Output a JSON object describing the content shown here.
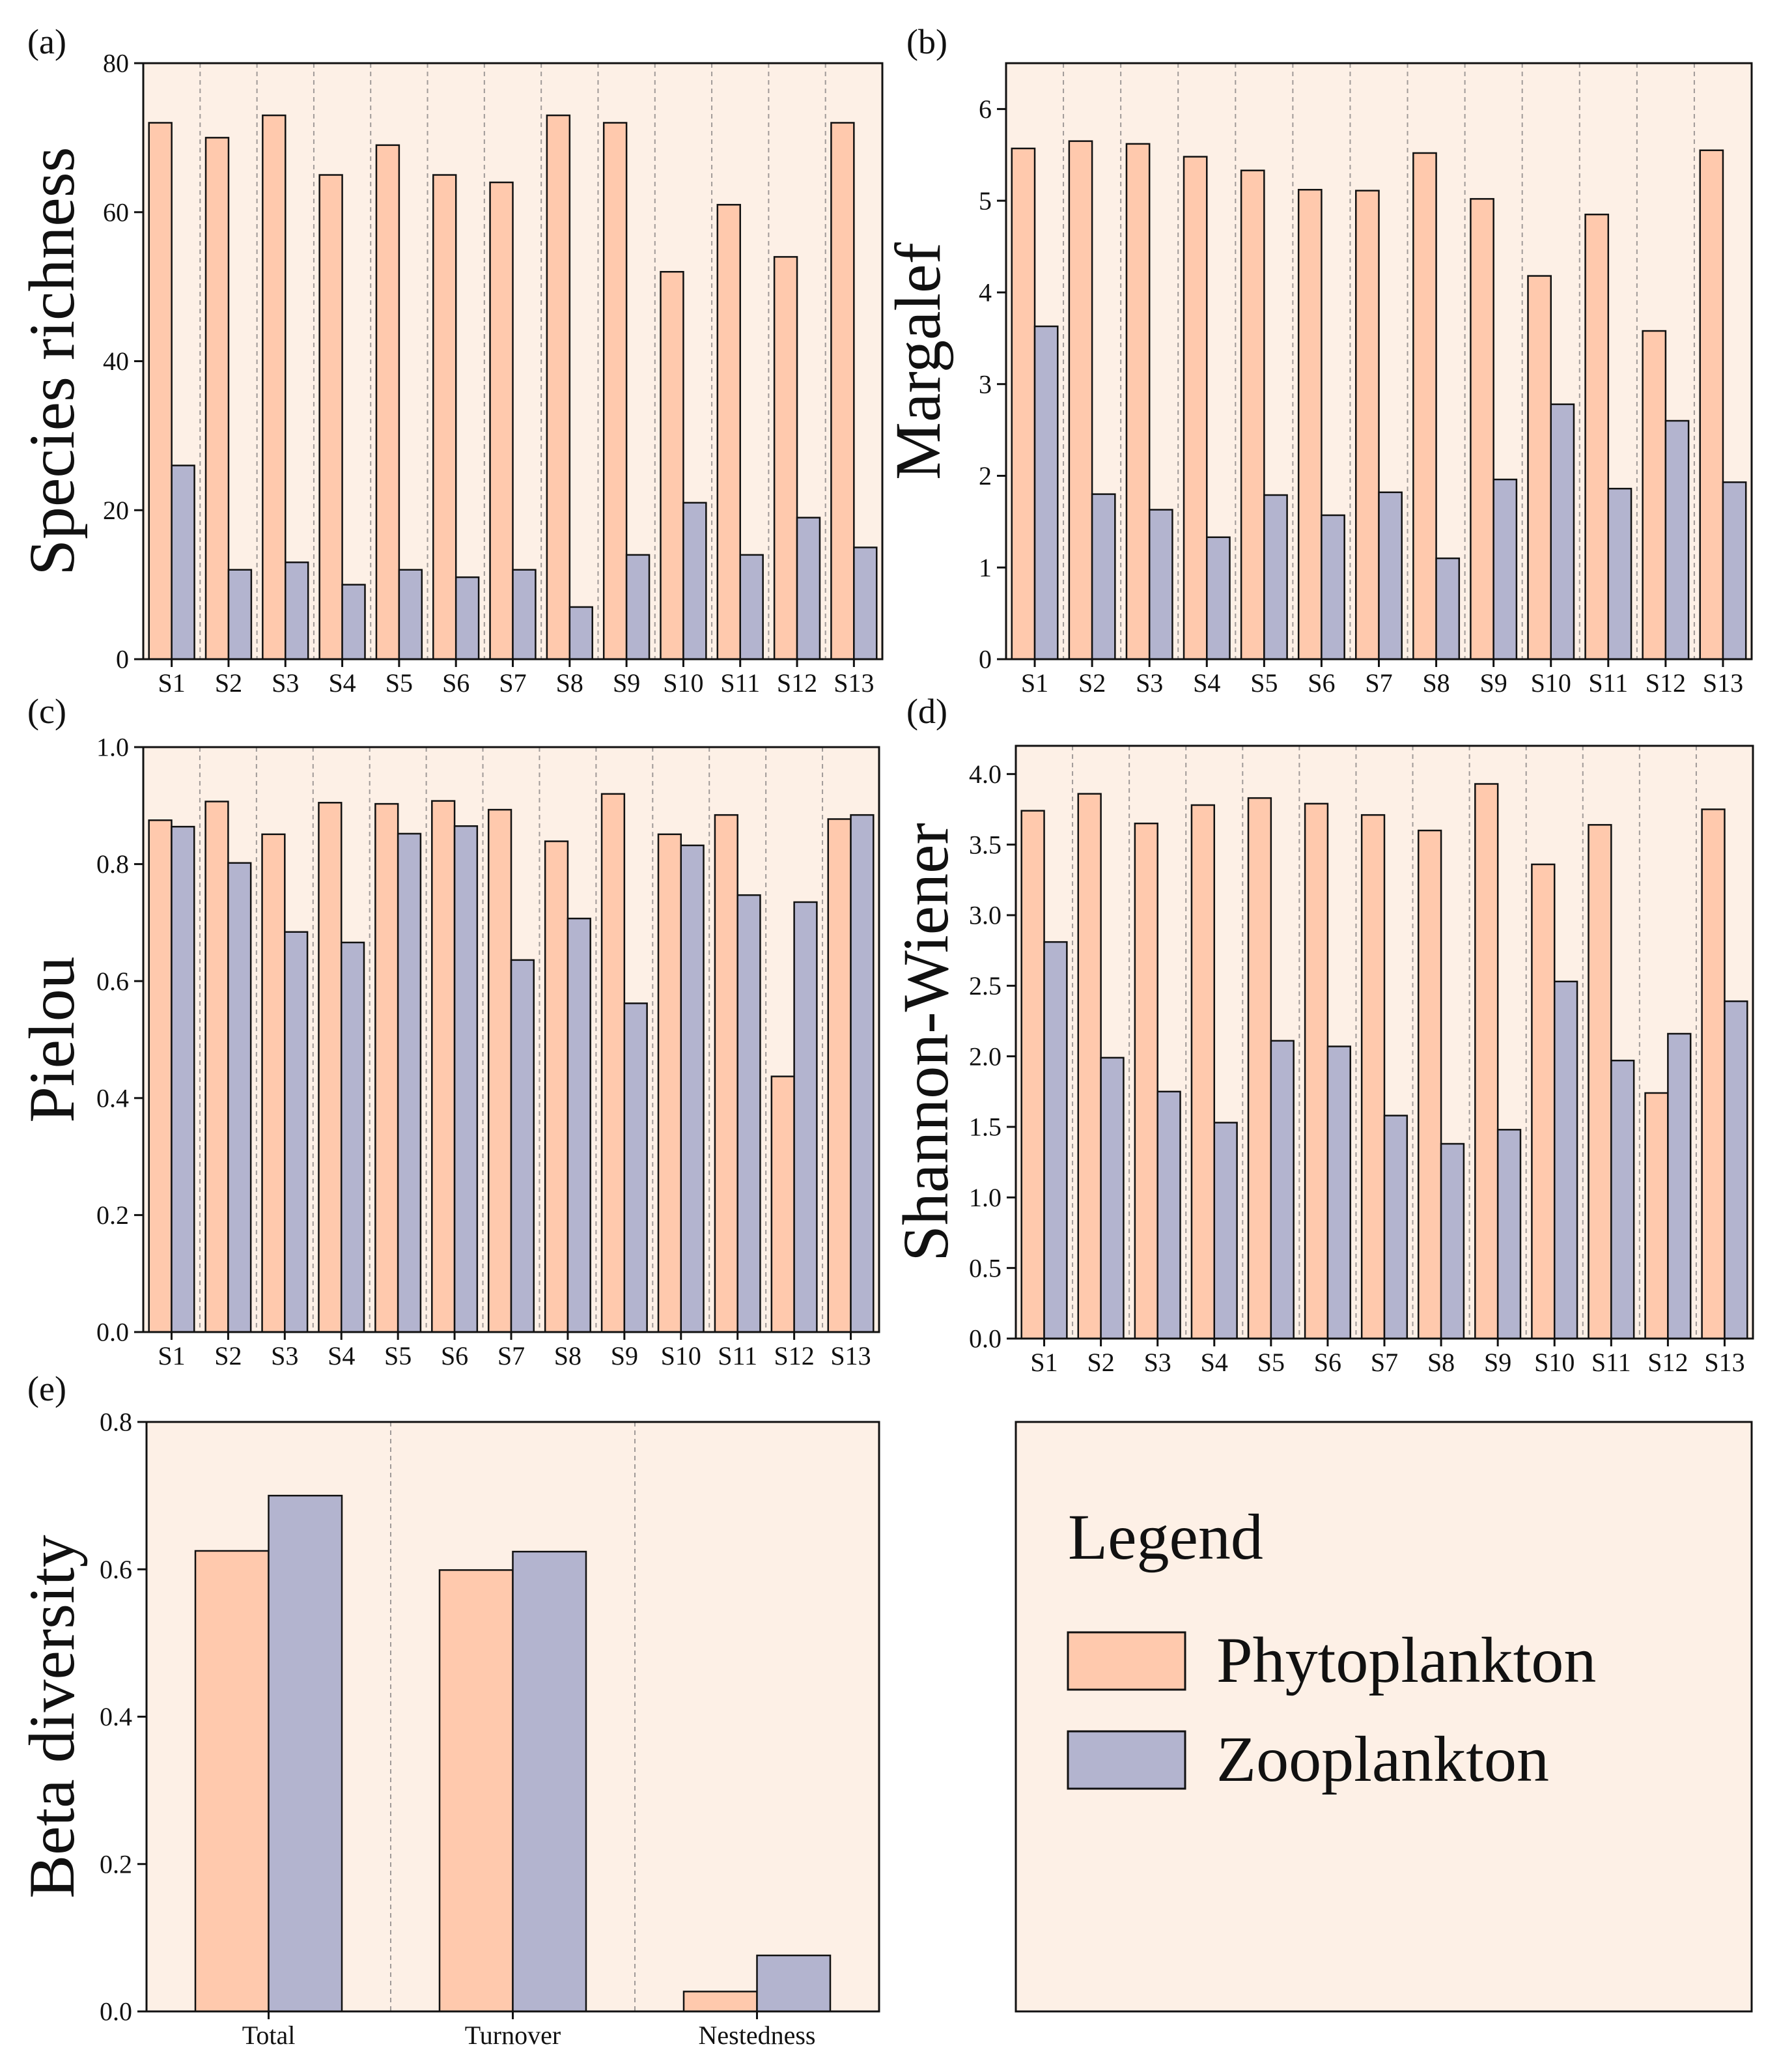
{
  "colors": {
    "background": "#FDF0E6",
    "phytoplankton": "#FFC9AD",
    "zooplankton": "#B3B4CF",
    "bar_stroke": "#111111",
    "axis": "#111111",
    "divider": "#A09A98"
  },
  "legend": {
    "title": "Legend",
    "items": [
      {
        "label": "Phytoplankton",
        "color": "#FFC9AD"
      },
      {
        "label": "Zooplankton",
        "color": "#B3B4CF"
      }
    ]
  },
  "chart_data": [
    {
      "type": "bar",
      "panel": "(a)",
      "ylabel": "Species richness",
      "categories": [
        "S1",
        "S2",
        "S3",
        "S4",
        "S5",
        "S6",
        "S7",
        "S8",
        "S9",
        "S10",
        "S11",
        "S12",
        "S13"
      ],
      "ylim": [
        0,
        80
      ],
      "yticks": [
        "0",
        "20",
        "40",
        "60",
        "80"
      ],
      "series": [
        {
          "name": "Phytoplankton",
          "values": [
            72,
            70,
            73,
            65,
            69,
            65,
            64,
            73,
            72,
            52,
            61,
            54,
            72
          ]
        },
        {
          "name": "Zooplankton",
          "values": [
            26,
            12,
            13,
            10,
            12,
            11,
            12,
            7,
            14,
            21,
            14,
            19,
            15
          ]
        }
      ]
    },
    {
      "type": "bar",
      "panel": "(b)",
      "ylabel": "Margalef",
      "categories": [
        "S1",
        "S2",
        "S3",
        "S4",
        "S5",
        "S6",
        "S7",
        "S8",
        "S9",
        "S10",
        "S11",
        "S12",
        "S13"
      ],
      "ylim": [
        0,
        6.5
      ],
      "yticks": [
        "0",
        "1",
        "2",
        "3",
        "4",
        "5",
        "6"
      ],
      "series": [
        {
          "name": "Phytoplankton",
          "values": [
            5.57,
            5.65,
            5.62,
            5.48,
            5.33,
            5.12,
            5.11,
            5.52,
            5.02,
            4.18,
            4.85,
            3.58,
            5.55
          ]
        },
        {
          "name": "Zooplankton",
          "values": [
            3.63,
            1.8,
            1.63,
            1.33,
            1.79,
            1.57,
            1.82,
            1.1,
            1.96,
            2.78,
            1.86,
            2.6,
            1.93
          ]
        }
      ]
    },
    {
      "type": "bar",
      "panel": "(c)",
      "ylabel": "Pielou",
      "categories": [
        "S1",
        "S2",
        "S3",
        "S4",
        "S5",
        "S6",
        "S7",
        "S8",
        "S9",
        "S10",
        "S11",
        "S12",
        "S13"
      ],
      "ylim": [
        0,
        1.0
      ],
      "yticks": [
        "0.0",
        "0.2",
        "0.4",
        "0.6",
        "0.8",
        "1.0"
      ],
      "series": [
        {
          "name": "Phytoplankton",
          "values": [
            0.875,
            0.907,
            0.851,
            0.905,
            0.903,
            0.908,
            0.893,
            0.839,
            0.92,
            0.851,
            0.884,
            0.437,
            0.877
          ]
        },
        {
          "name": "Zooplankton",
          "values": [
            0.864,
            0.802,
            0.684,
            0.666,
            0.852,
            0.865,
            0.636,
            0.707,
            0.562,
            0.832,
            0.747,
            0.735,
            0.884
          ]
        }
      ]
    },
    {
      "type": "bar",
      "panel": "(d)",
      "ylabel": "Shannon-Wiener",
      "categories": [
        "S1",
        "S2",
        "S3",
        "S4",
        "S5",
        "S6",
        "S7",
        "S8",
        "S9",
        "S10",
        "S11",
        "S12",
        "S13"
      ],
      "ylim": [
        0,
        4.2
      ],
      "yticks": [
        "0.0",
        "0.5",
        "1.0",
        "1.5",
        "2.0",
        "2.5",
        "3.0",
        "3.5",
        "4.0"
      ],
      "series": [
        {
          "name": "Phytoplankton",
          "values": [
            3.74,
            3.86,
            3.65,
            3.78,
            3.83,
            3.79,
            3.71,
            3.6,
            3.93,
            3.36,
            3.64,
            1.74,
            3.75
          ]
        },
        {
          "name": "Zooplankton",
          "values": [
            2.81,
            1.99,
            1.75,
            1.53,
            2.11,
            2.07,
            1.58,
            1.38,
            1.48,
            2.53,
            1.97,
            2.16,
            2.39
          ]
        }
      ]
    },
    {
      "type": "bar",
      "panel": "(e)",
      "ylabel": "Beta diversity",
      "categories": [
        "Total",
        "Turnover",
        "Nestedness"
      ],
      "ylim": [
        0,
        0.8
      ],
      "yticks": [
        "0.0",
        "0.2",
        "0.4",
        "0.6",
        "0.8"
      ],
      "series": [
        {
          "name": "Phytoplankton",
          "values": [
            0.625,
            0.599,
            0.027
          ]
        },
        {
          "name": "Zooplankton",
          "values": [
            0.7,
            0.624,
            0.076
          ]
        }
      ]
    }
  ]
}
